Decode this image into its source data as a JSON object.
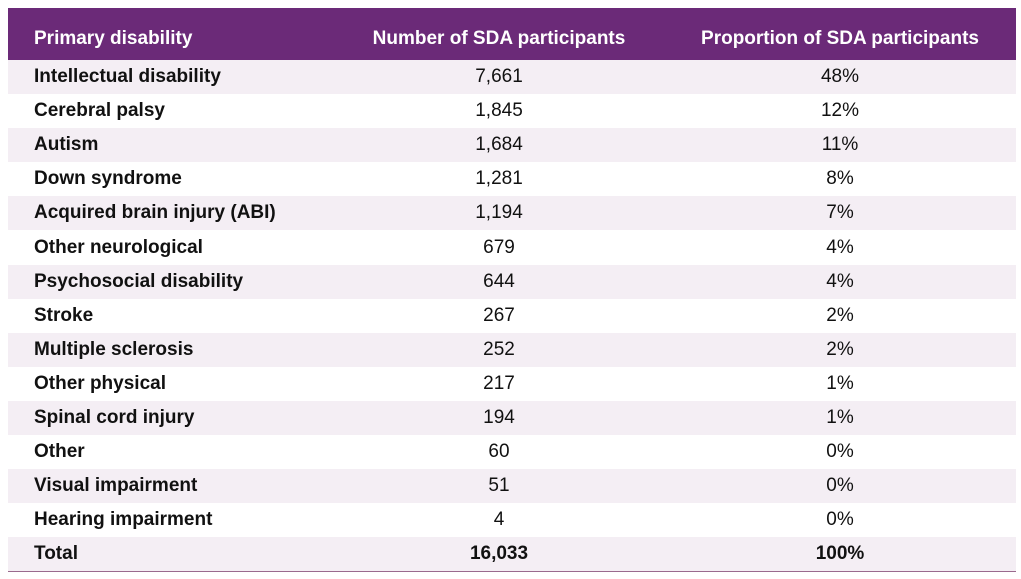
{
  "table": {
    "headers": [
      "Primary disability",
      "Number of SDA participants",
      "Proportion of SDA participants"
    ],
    "rows": [
      [
        "Intellectual disability",
        "7,661",
        "48%"
      ],
      [
        "Cerebral palsy",
        "1,845",
        "12%"
      ],
      [
        "Autism",
        "1,684",
        "11%"
      ],
      [
        "Down syndrome",
        "1,281",
        "8%"
      ],
      [
        "Acquired brain injury (ABI)",
        "1,194",
        "7%"
      ],
      [
        "Other neurological",
        "679",
        "4%"
      ],
      [
        "Psychosocial disability",
        "644",
        "4%"
      ],
      [
        "Stroke",
        "267",
        "2%"
      ],
      [
        "Multiple sclerosis",
        "252",
        "2%"
      ],
      [
        "Other physical",
        "217",
        "1%"
      ],
      [
        "Spinal cord injury",
        "194",
        "1%"
      ],
      [
        "Other",
        "60",
        "0%"
      ],
      [
        "Visual impairment",
        "51",
        "0%"
      ],
      [
        "Hearing impairment",
        "4",
        "0%"
      ]
    ],
    "total": [
      "Total",
      "16,033",
      "100%"
    ]
  },
  "colors": {
    "header_bg": "#6b2a78",
    "stripe": "#f4eef4",
    "header_text": "#ffffff"
  }
}
